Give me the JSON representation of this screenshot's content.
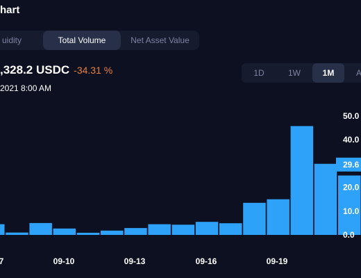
{
  "header": {
    "title": "hart"
  },
  "tabs": [
    {
      "label": "uidity",
      "active": false
    },
    {
      "label": "Total Volume",
      "active": true
    },
    {
      "label": "Net Asset Value",
      "active": false
    }
  ],
  "summary": {
    "value": ",328.2 USDC",
    "change": "-34.31 %",
    "change_color": "#e8803e",
    "date": "2021 8:00 AM"
  },
  "ranges": [
    {
      "label": "1D",
      "active": false
    },
    {
      "label": "1W",
      "active": false
    },
    {
      "label": "1M",
      "active": true
    },
    {
      "label": "A",
      "active": false
    }
  ],
  "chart_data": {
    "type": "bar",
    "x_tick_labels": [
      "7",
      "09-10",
      "09-13",
      "09-16",
      "09-19"
    ],
    "y_tick_labels": [
      "50.0",
      "40.0",
      "30.0",
      "20.0",
      "10.0",
      "0.0"
    ],
    "ylim": [
      0,
      50
    ],
    "values": [
      4.5,
      1,
      5,
      2.7,
      0.9,
      1.8,
      2.9,
      4.5,
      4.3,
      5.5,
      4.9,
      13.5,
      15,
      45.8,
      29.9,
      25
    ],
    "current_value_label": "29.6",
    "bar_color": "#2ea1f8",
    "highlight_color": "#2ea1f8",
    "grid": false
  }
}
